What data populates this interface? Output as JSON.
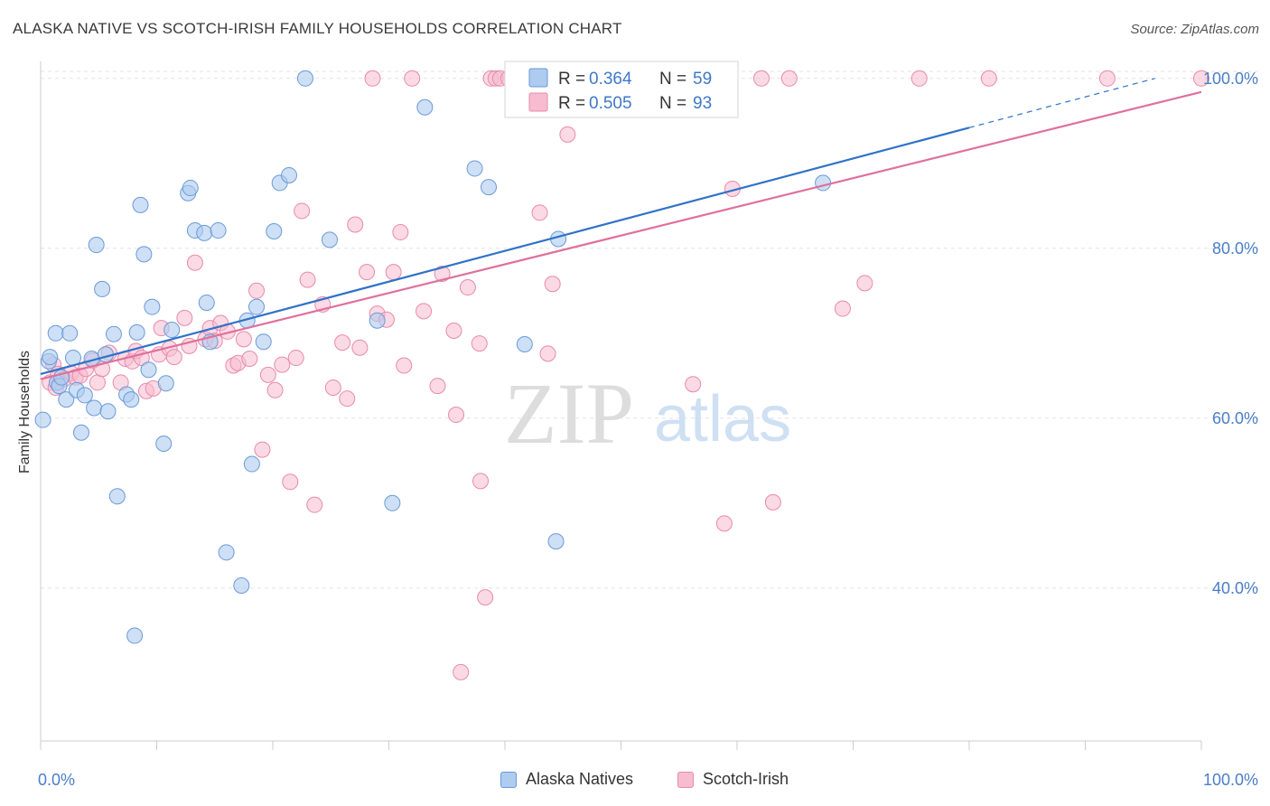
{
  "title": "ALASKA NATIVE VS SCOTCH-IRISH FAMILY HOUSEHOLDS CORRELATION CHART",
  "source": "Source: ZipAtlas.com",
  "watermark": {
    "zip": "ZIP",
    "atlas": "atlas"
  },
  "colors": {
    "blue_fill": "#aecbf0",
    "blue_stroke": "#6a9ad8",
    "blue_line": "#2f72c8",
    "pink_fill": "#f7bcd0",
    "pink_stroke": "#e88aab",
    "pink_line": "#e0709a",
    "axis_text": "#4a7ec8",
    "grid": "#e3e3e3"
  },
  "legend": {
    "r_label": "R =",
    "n_label": "N =",
    "rows": [
      {
        "series": "Alaska Natives",
        "r": "0.364",
        "n": "59"
      },
      {
        "series": "Scotch-Irish",
        "r": "0.505",
        "n": "93"
      }
    ]
  },
  "chart_data": {
    "type": "scatter",
    "title": "ALASKA NATIVE VS SCOTCH-IRISH FAMILY HOUSEHOLDS CORRELATION CHART",
    "xlabel": "",
    "ylabel": "Family Households",
    "xlim": [
      0,
      100
    ],
    "ylim": [
      22,
      102
    ],
    "x_tick_labels": [
      "0.0%",
      "100.0%"
    ],
    "y_ticks": [
      40,
      60,
      80,
      100
    ],
    "y_tick_labels": [
      "40.0%",
      "60.0%",
      "80.0%",
      "100.0%"
    ],
    "grid": true,
    "legend_position": "top-center",
    "series": [
      {
        "name": "Alaska Natives",
        "r": 0.364,
        "n": 59,
        "trend": {
          "x0": 0,
          "y0": 65.2,
          "x1": 80,
          "y1": 94.2,
          "dashed_to_x": 96,
          "dashed_to_y": 100
        },
        "points": [
          [
            0.2,
            59.8
          ],
          [
            0.7,
            66.7
          ],
          [
            0.8,
            67.2
          ],
          [
            1.3,
            70.0
          ],
          [
            1.4,
            64.2
          ],
          [
            1.6,
            63.8
          ],
          [
            1.8,
            64.8
          ],
          [
            2.2,
            62.2
          ],
          [
            2.5,
            70.0
          ],
          [
            2.8,
            67.1
          ],
          [
            3.1,
            63.3
          ],
          [
            3.5,
            58.3
          ],
          [
            3.8,
            62.7
          ],
          [
            4.4,
            67.0
          ],
          [
            4.6,
            61.2
          ],
          [
            4.8,
            80.4
          ],
          [
            5.3,
            75.2
          ],
          [
            5.6,
            67.5
          ],
          [
            5.8,
            60.8
          ],
          [
            6.3,
            69.9
          ],
          [
            6.6,
            50.8
          ],
          [
            7.4,
            62.8
          ],
          [
            7.8,
            62.2
          ],
          [
            8.1,
            34.4
          ],
          [
            8.3,
            70.1
          ],
          [
            8.6,
            85.1
          ],
          [
            8.9,
            79.3
          ],
          [
            9.3,
            65.7
          ],
          [
            9.6,
            73.1
          ],
          [
            10.6,
            57.0
          ],
          [
            10.8,
            64.1
          ],
          [
            11.3,
            70.4
          ],
          [
            12.7,
            86.5
          ],
          [
            12.9,
            87.1
          ],
          [
            13.3,
            82.1
          ],
          [
            14.1,
            81.8
          ],
          [
            14.3,
            73.6
          ],
          [
            14.6,
            69.0
          ],
          [
            15.3,
            82.1
          ],
          [
            16.0,
            44.2
          ],
          [
            17.3,
            40.3
          ],
          [
            17.8,
            71.5
          ],
          [
            18.2,
            54.6
          ],
          [
            18.6,
            73.1
          ],
          [
            19.2,
            69.0
          ],
          [
            20.1,
            82.0
          ],
          [
            20.6,
            87.7
          ],
          [
            21.4,
            88.6
          ],
          [
            22.8,
            100.0
          ],
          [
            24.9,
            81.0
          ],
          [
            29.0,
            71.5
          ],
          [
            30.3,
            50.0
          ],
          [
            33.1,
            96.6
          ],
          [
            37.4,
            89.4
          ],
          [
            38.6,
            87.2
          ],
          [
            41.7,
            68.7
          ],
          [
            44.4,
            45.5
          ],
          [
            44.6,
            81.1
          ],
          [
            67.4,
            87.7
          ]
        ]
      },
      {
        "name": "Scotch-Irish",
        "r": 0.505,
        "n": 93,
        "trend": {
          "x0": 0,
          "y0": 64.6,
          "x1": 100,
          "y1": 98.4
        },
        "points": [
          [
            0.8,
            64.2
          ],
          [
            1.1,
            66.3
          ],
          [
            1.3,
            63.6
          ],
          [
            1.5,
            65.2
          ],
          [
            2.0,
            64.6
          ],
          [
            2.6,
            65.3
          ],
          [
            3.0,
            64.8
          ],
          [
            3.4,
            65.0
          ],
          [
            3.9,
            65.8
          ],
          [
            4.5,
            66.8
          ],
          [
            4.9,
            64.2
          ],
          [
            5.3,
            65.8
          ],
          [
            5.9,
            67.7
          ],
          [
            6.9,
            64.2
          ],
          [
            7.3,
            67.0
          ],
          [
            7.9,
            66.7
          ],
          [
            8.2,
            67.9
          ],
          [
            8.7,
            67.1
          ],
          [
            9.1,
            63.2
          ],
          [
            9.7,
            63.5
          ],
          [
            10.2,
            67.5
          ],
          [
            10.4,
            70.6
          ],
          [
            11.1,
            68.2
          ],
          [
            11.5,
            67.2
          ],
          [
            12.4,
            71.8
          ],
          [
            12.8,
            68.5
          ],
          [
            13.3,
            78.3
          ],
          [
            14.2,
            69.3
          ],
          [
            14.6,
            70.6
          ],
          [
            15.0,
            69.1
          ],
          [
            15.5,
            71.2
          ],
          [
            16.1,
            70.2
          ],
          [
            16.6,
            66.2
          ],
          [
            17.0,
            66.5
          ],
          [
            17.5,
            69.3
          ],
          [
            18.0,
            67.0
          ],
          [
            18.6,
            75.0
          ],
          [
            19.1,
            56.3
          ],
          [
            19.6,
            65.1
          ],
          [
            20.2,
            63.3
          ],
          [
            20.8,
            66.3
          ],
          [
            21.5,
            52.5
          ],
          [
            22.0,
            67.1
          ],
          [
            22.5,
            84.4
          ],
          [
            23.0,
            76.3
          ],
          [
            23.6,
            49.8
          ],
          [
            24.3,
            73.4
          ],
          [
            25.2,
            63.6
          ],
          [
            26.0,
            68.9
          ],
          [
            26.4,
            62.3
          ],
          [
            27.1,
            82.8
          ],
          [
            27.5,
            68.3
          ],
          [
            28.1,
            77.2
          ],
          [
            28.6,
            100.0
          ],
          [
            29.0,
            72.3
          ],
          [
            29.8,
            71.6
          ],
          [
            30.4,
            77.2
          ],
          [
            31.0,
            81.9
          ],
          [
            31.3,
            66.2
          ],
          [
            32.0,
            100.0
          ],
          [
            33.0,
            72.6
          ],
          [
            34.6,
            77.0
          ],
          [
            34.2,
            63.8
          ],
          [
            35.6,
            70.3
          ],
          [
            35.8,
            60.4
          ],
          [
            36.2,
            30.1
          ],
          [
            36.8,
            75.4
          ],
          [
            37.8,
            68.8
          ],
          [
            37.9,
            52.6
          ],
          [
            38.3,
            38.9
          ],
          [
            38.8,
            100.0
          ],
          [
            39.2,
            100.0
          ],
          [
            39.6,
            100.0
          ],
          [
            40.3,
            100.0
          ],
          [
            41.3,
            100.0
          ],
          [
            41.6,
            100.0
          ],
          [
            43.0,
            84.2
          ],
          [
            43.7,
            67.6
          ],
          [
            44.1,
            75.8
          ],
          [
            45.4,
            93.4
          ],
          [
            50.6,
            100.0
          ],
          [
            56.2,
            64.0
          ],
          [
            58.9,
            47.6
          ],
          [
            59.6,
            87.0
          ],
          [
            62.1,
            100.0
          ],
          [
            63.1,
            50.1
          ],
          [
            64.5,
            100.0
          ],
          [
            69.1,
            72.9
          ],
          [
            71.0,
            75.9
          ],
          [
            75.7,
            100.0
          ],
          [
            81.7,
            100.0
          ],
          [
            91.9,
            100.0
          ],
          [
            100.0,
            100.0
          ]
        ]
      }
    ]
  }
}
